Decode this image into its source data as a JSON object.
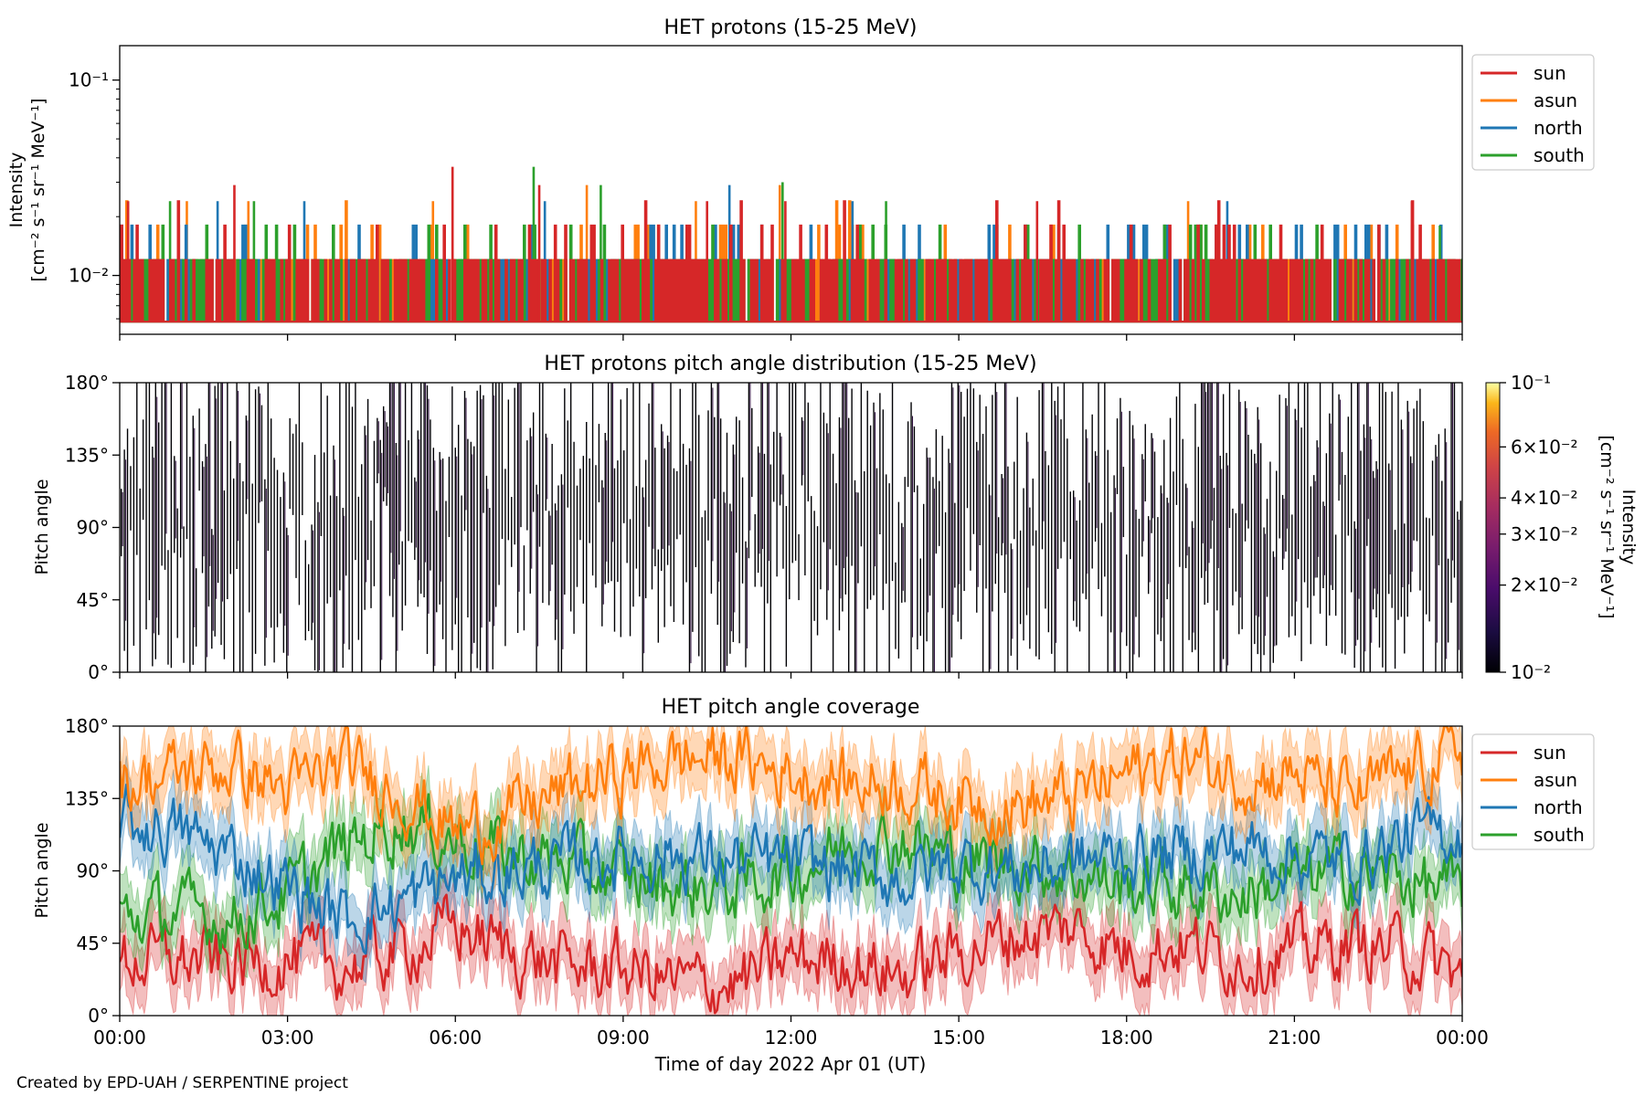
{
  "footer": {
    "credit": "Created by EPD-UAH / SERPENTINE project"
  },
  "colors": {
    "sun": "#d62728",
    "asun": "#ff7f0e",
    "north": "#1f77b4",
    "south": "#2ca02c",
    "pad_bg": "#ffffff",
    "pad_mark": "#000004"
  },
  "chart_data": [
    {
      "type": "line",
      "title": "HET protons (15-25 MeV)",
      "ylabel_line1": "Intensity",
      "ylabel_line2": "[cm⁻² s⁻¹ sr⁻¹ MeV⁻¹]",
      "yscale": "log",
      "ylim": [
        0.005,
        0.15
      ],
      "yticks": [
        {
          "value": 0.1,
          "label": "10⁻¹"
        },
        {
          "value": 0.01,
          "label": "10⁻²"
        }
      ],
      "xlim_hours": [
        0,
        24
      ],
      "legend": {
        "placement": "outside-right-top",
        "entries": [
          "sun",
          "asun",
          "north",
          "south"
        ]
      },
      "series": [
        {
          "name": "sun",
          "color": "#d62728",
          "baseline": 0.0058,
          "levels": [
            0.012,
            0.018,
            0.024
          ],
          "spikes": [
            {
              "t": 0.15,
              "v": 0.024
            },
            {
              "t": 2.05,
              "v": 0.029
            },
            {
              "t": 5.95,
              "v": 0.036
            },
            {
              "t": 7.5,
              "v": 0.029
            },
            {
              "t": 10.5,
              "v": 0.024
            },
            {
              "t": 11.9,
              "v": 0.024
            },
            {
              "t": 16.4,
              "v": 0.024
            },
            {
              "t": 23.1,
              "v": 0.024
            }
          ]
        },
        {
          "name": "asun",
          "color": "#ff7f0e",
          "baseline": 0.0058,
          "levels": [
            0.012,
            0.018,
            0.024
          ],
          "spikes": [
            {
              "t": 1.2,
              "v": 0.024
            },
            {
              "t": 2.3,
              "v": 0.024
            },
            {
              "t": 5.6,
              "v": 0.024
            },
            {
              "t": 8.35,
              "v": 0.029
            },
            {
              "t": 10.3,
              "v": 0.024
            },
            {
              "t": 11.8,
              "v": 0.029
            },
            {
              "t": 19.1,
              "v": 0.024
            }
          ]
        },
        {
          "name": "north",
          "color": "#1f77b4",
          "baseline": 0.0058,
          "levels": [
            0.012,
            0.018
          ],
          "spikes": [
            {
              "t": 1.75,
              "v": 0.024
            },
            {
              "t": 3.3,
              "v": 0.024
            },
            {
              "t": 7.6,
              "v": 0.024
            },
            {
              "t": 10.9,
              "v": 0.029
            },
            {
              "t": 13.1,
              "v": 0.024
            },
            {
              "t": 19.8,
              "v": 0.024
            }
          ]
        },
        {
          "name": "south",
          "color": "#2ca02c",
          "baseline": 0.0058,
          "levels": [
            0.012,
            0.018
          ],
          "spikes": [
            {
              "t": 0.9,
              "v": 0.024
            },
            {
              "t": 2.4,
              "v": 0.024
            },
            {
              "t": 7.4,
              "v": 0.036
            },
            {
              "t": 8.6,
              "v": 0.029
            },
            {
              "t": 11.85,
              "v": 0.03
            },
            {
              "t": 13.7,
              "v": 0.024
            },
            {
              "t": 23.6,
              "v": 0.018
            }
          ]
        }
      ]
    },
    {
      "type": "heatmap",
      "title": "HET protons pitch angle distribution (15-25 MeV)",
      "ylabel": "Pitch angle",
      "ylim": [
        0,
        180
      ],
      "yticks": [
        "0°",
        "45°",
        "90°",
        "135°",
        "180°"
      ],
      "ytick_values": [
        0,
        45,
        90,
        135,
        180
      ],
      "xlim_hours": [
        0,
        24
      ],
      "colorbar": {
        "label_line1": "Intensity",
        "label_line2": "[cm⁻² s⁻¹ sr⁻¹ MeV⁻¹]",
        "scale": "log",
        "range": [
          0.01,
          0.1
        ],
        "colormap": "inferno",
        "ticks": [
          {
            "value": 0.1,
            "label": "10⁻¹"
          },
          {
            "value": 0.06,
            "label": "6×10⁻²"
          },
          {
            "value": 0.04,
            "label": "4×10⁻²"
          },
          {
            "value": 0.03,
            "label": "3×10⁻²"
          },
          {
            "value": 0.02,
            "label": "2×10⁻²"
          },
          {
            "value": 0.01,
            "label": "10⁻²"
          }
        ]
      }
    },
    {
      "type": "line",
      "title": "HET pitch angle coverage",
      "ylabel": "Pitch angle",
      "xlabel": "Time of day 2022 Apr 01 (UT)",
      "ylim": [
        0,
        180
      ],
      "yticks": [
        "0°",
        "45°",
        "90°",
        "135°",
        "180°"
      ],
      "ytick_values": [
        0,
        45,
        90,
        135,
        180
      ],
      "xlim_hours": [
        0,
        24
      ],
      "xticks": [
        "00:00",
        "03:00",
        "06:00",
        "09:00",
        "12:00",
        "15:00",
        "18:00",
        "21:00",
        "00:00"
      ],
      "xtick_values": [
        0,
        3,
        6,
        9,
        12,
        15,
        18,
        21,
        24
      ],
      "legend": {
        "placement": "outside-right-top",
        "entries": [
          "sun",
          "asun",
          "north",
          "south"
        ]
      },
      "band_halfwidth_deg": 18,
      "series": [
        {
          "name": "sun",
          "color": "#d62728",
          "x": [
            0,
            1,
            2,
            3,
            4,
            5,
            6,
            7,
            8,
            9,
            10,
            11,
            12,
            13,
            14,
            15,
            16,
            17,
            18,
            19,
            20,
            21,
            22,
            23,
            24
          ],
          "y": [
            35,
            35,
            32,
            35,
            30,
            40,
            55,
            40,
            30,
            30,
            20,
            20,
            35,
            35,
            25,
            40,
            50,
            55,
            40,
            45,
            35,
            40,
            45,
            40,
            25
          ]
        },
        {
          "name": "asun",
          "color": "#ff7f0e",
          "x": [
            0,
            1,
            2,
            3,
            4,
            5,
            6,
            7,
            8,
            9,
            10,
            11,
            12,
            13,
            14,
            15,
            16,
            17,
            18,
            19,
            20,
            21,
            22,
            23,
            24
          ],
          "y": [
            145,
            150,
            155,
            140,
            155,
            140,
            115,
            125,
            140,
            150,
            160,
            160,
            150,
            145,
            145,
            135,
            130,
            135,
            150,
            160,
            150,
            150,
            135,
            150,
            165
          ]
        },
        {
          "name": "north",
          "color": "#1f77b4",
          "x": [
            0,
            1,
            2,
            3,
            4,
            5,
            6,
            7,
            8,
            9,
            10,
            11,
            12,
            13,
            14,
            15,
            16,
            17,
            18,
            19,
            20,
            21,
            22,
            23,
            24
          ],
          "y": [
            120,
            115,
            100,
            80,
            60,
            70,
            85,
            90,
            95,
            100,
            100,
            95,
            95,
            90,
            85,
            95,
            90,
            95,
            100,
            100,
            105,
            100,
            95,
            110,
            115
          ]
        },
        {
          "name": "south",
          "color": "#2ca02c",
          "x": [
            0,
            1,
            2,
            3,
            4,
            5,
            6,
            7,
            8,
            9,
            10,
            11,
            12,
            13,
            14,
            15,
            16,
            17,
            18,
            19,
            20,
            21,
            22,
            23,
            24
          ],
          "y": [
            60,
            65,
            60,
            75,
            105,
            120,
            110,
            100,
            95,
            85,
            80,
            80,
            90,
            105,
            110,
            95,
            95,
            90,
            80,
            80,
            75,
            85,
            90,
            85,
            75
          ]
        }
      ]
    }
  ]
}
